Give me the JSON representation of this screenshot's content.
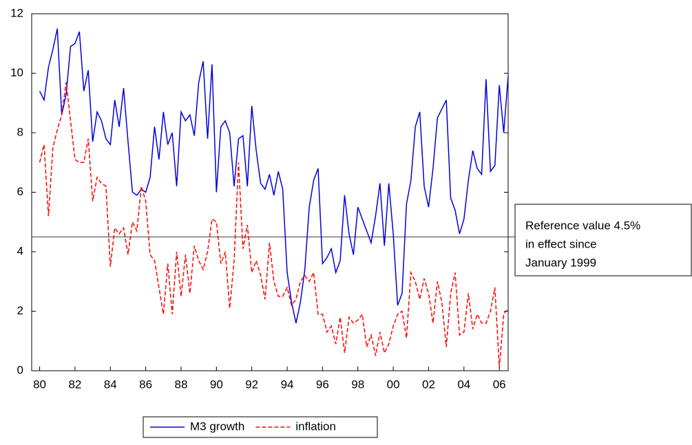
{
  "chart_data": {
    "type": "line",
    "x": [
      1980,
      1980.25,
      1980.5,
      1980.75,
      1981,
      1981.25,
      1981.5,
      1981.75,
      1982,
      1982.25,
      1982.5,
      1982.75,
      1983,
      1983.25,
      1983.5,
      1983.75,
      1984,
      1984.25,
      1984.5,
      1984.75,
      1985,
      1985.25,
      1985.5,
      1985.75,
      1986,
      1986.25,
      1986.5,
      1986.75,
      1987,
      1987.25,
      1987.5,
      1987.75,
      1988,
      1988.25,
      1988.5,
      1988.75,
      1989,
      1989.25,
      1989.5,
      1989.75,
      1990,
      1990.25,
      1990.5,
      1990.75,
      1991,
      1991.25,
      1991.5,
      1991.75,
      1992,
      1992.25,
      1992.5,
      1992.75,
      1993,
      1993.25,
      1993.5,
      1993.75,
      1994,
      1994.25,
      1994.5,
      1994.75,
      1995,
      1995.25,
      1995.5,
      1995.75,
      1996,
      1996.25,
      1996.5,
      1996.75,
      1997,
      1997.25,
      1997.5,
      1997.75,
      1998,
      1998.25,
      1998.5,
      1998.75,
      1999,
      1999.25,
      1999.5,
      1999.75,
      2000,
      2000.25,
      2000.5,
      2000.75,
      2001,
      2001.25,
      2001.5,
      2001.75,
      2002,
      2002.25,
      2002.5,
      2002.75,
      2003,
      2003.25,
      2003.5,
      2003.75,
      2004,
      2004.25,
      2004.5,
      2004.75,
      2005,
      2005.25,
      2005.5,
      2005.75,
      2006,
      2006.25,
      2006.5
    ],
    "series": [
      {
        "name": "M3 growth",
        "color": "#0000dd",
        "line_style": "solid",
        "values": [
          9.4,
          9.1,
          10.2,
          10.8,
          11.5,
          8.6,
          9.3,
          10.9,
          11.0,
          11.4,
          9.4,
          10.1,
          7.7,
          8.7,
          8.4,
          7.8,
          7.6,
          9.1,
          8.2,
          9.5,
          7.7,
          6.0,
          5.9,
          6.1,
          6.0,
          6.5,
          8.2,
          7.1,
          8.7,
          7.6,
          8.0,
          6.2,
          8.7,
          8.4,
          8.6,
          7.9,
          9.7,
          10.4,
          7.8,
          10.3,
          6.0,
          8.2,
          8.4,
          8.0,
          6.2,
          7.8,
          7.9,
          6.2,
          8.9,
          7.4,
          6.3,
          6.1,
          6.6,
          5.9,
          6.7,
          6.1,
          3.3,
          2.3,
          1.6,
          2.3,
          3.4,
          5.5,
          6.4,
          6.8,
          3.6,
          3.8,
          4.1,
          3.3,
          3.7,
          5.9,
          4.6,
          3.9,
          5.5,
          5.1,
          4.7,
          4.3,
          5.2,
          6.3,
          4.2,
          6.3,
          4.6,
          2.2,
          2.6,
          5.6,
          6.4,
          8.2,
          8.7,
          6.2,
          5.5,
          6.8,
          8.5,
          8.8,
          9.1,
          5.8,
          5.4,
          4.6,
          5.1,
          6.4,
          7.4,
          6.8,
          6.6,
          9.8,
          6.7,
          6.9,
          9.6,
          8.0,
          9.9
        ]
      },
      {
        "name": "inflation",
        "color": "#ff0000",
        "line_style": "dashed",
        "values": [
          7.0,
          7.6,
          5.2,
          7.5,
          8.1,
          8.6,
          9.7,
          8.4,
          7.1,
          7.0,
          7.0,
          7.8,
          5.7,
          6.5,
          6.3,
          6.2,
          3.5,
          4.8,
          4.6,
          4.8,
          3.9,
          5.0,
          4.7,
          6.2,
          5.7,
          3.9,
          3.7,
          2.8,
          1.9,
          3.6,
          1.9,
          4.0,
          2.5,
          3.9,
          2.6,
          4.2,
          3.7,
          3.4,
          4.0,
          5.1,
          5.0,
          3.6,
          4.0,
          2.1,
          3.7,
          7.0,
          4.1,
          4.9,
          3.3,
          3.7,
          3.2,
          2.4,
          4.3,
          3.0,
          2.5,
          2.5,
          2.8,
          2.2,
          2.4,
          3.0,
          3.2,
          3.0,
          3.3,
          1.9,
          1.9,
          1.3,
          1.5,
          0.9,
          1.8,
          0.6,
          1.8,
          1.6,
          1.7,
          1.9,
          0.8,
          1.2,
          0.5,
          1.3,
          0.6,
          0.9,
          1.5,
          1.9,
          2.0,
          1.1,
          3.3,
          3.0,
          2.4,
          3.1,
          2.6,
          1.6,
          3.0,
          2.3,
          0.8,
          2.6,
          3.3,
          1.2,
          1.3,
          2.6,
          1.4,
          1.9,
          1.6,
          1.6,
          2.0,
          2.8,
          0.1,
          1.9,
          2.1
        ]
      }
    ],
    "xlim": [
      1979.55,
      2006.5
    ],
    "xticks": [
      {
        "value": 1980,
        "label": "80"
      },
      {
        "value": 1982,
        "label": "82"
      },
      {
        "value": 1984,
        "label": "84"
      },
      {
        "value": 1986,
        "label": "86"
      },
      {
        "value": 1988,
        "label": "88"
      },
      {
        "value": 1990,
        "label": "90"
      },
      {
        "value": 1992,
        "label": "92"
      },
      {
        "value": 1994,
        "label": "94"
      },
      {
        "value": 1996,
        "label": "96"
      },
      {
        "value": 1998,
        "label": "98"
      },
      {
        "value": 2000,
        "label": "00"
      },
      {
        "value": 2002,
        "label": "02"
      },
      {
        "value": 2004,
        "label": "04"
      },
      {
        "value": 2006,
        "label": "06"
      }
    ],
    "ylim": [
      0,
      12
    ],
    "yticks": [
      0,
      2,
      4,
      6,
      8,
      10,
      12
    ],
    "reference_line": 4.5,
    "annotation": {
      "lines": [
        "Reference value 4.5%",
        "in effect since",
        "January 1999"
      ]
    },
    "legend": "bottom"
  }
}
